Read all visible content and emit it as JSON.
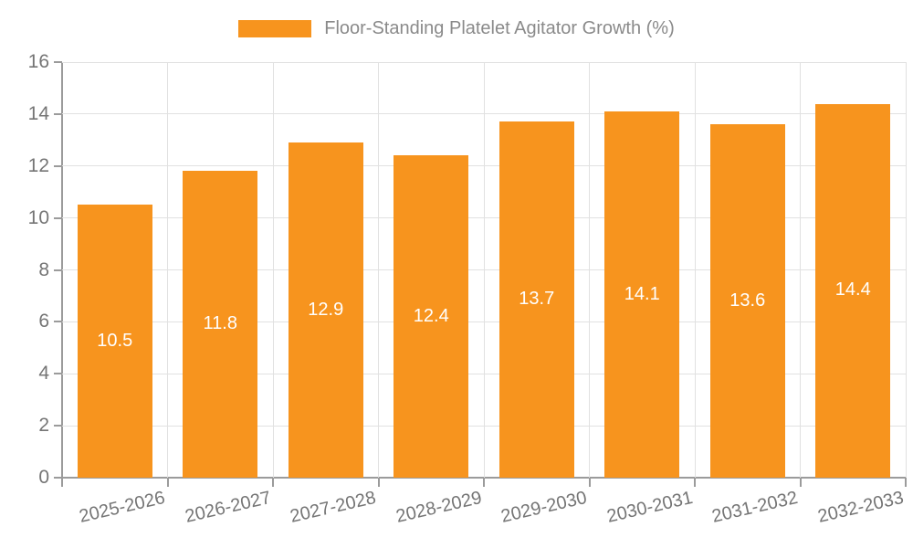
{
  "chart_data": {
    "type": "bar",
    "title": "",
    "legend": [
      "Floor-Standing Platelet Agitator Growth (%)"
    ],
    "legend_position": "top-center",
    "categories": [
      "2025-2026",
      "2026-2027",
      "2027-2028",
      "2028-2029",
      "2029-2030",
      "2030-2031",
      "2031-2032",
      "2032-2033"
    ],
    "series": [
      {
        "name": "Floor-Standing Platelet Agitator Growth (%)",
        "values": [
          10.5,
          11.8,
          12.9,
          12.4,
          13.7,
          14.1,
          13.6,
          14.4
        ]
      }
    ],
    "value_labels": [
      "10.5",
      "11.8",
      "12.9",
      "12.4",
      "13.7",
      "14.1",
      "13.6",
      "14.4"
    ],
    "xlabel": "",
    "ylabel": "",
    "ylim": [
      0,
      16
    ],
    "yticks": [
      0,
      2,
      4,
      6,
      8,
      10,
      12,
      14,
      16
    ],
    "grid": "horizontal and vertical light-gray lines",
    "x_label_rotation_deg": -13
  },
  "colors": {
    "bar": "#f7941e",
    "grid": "#e1e1e1",
    "axis": "#9b9b9b",
    "tick_label": "#757575",
    "legend_text": "#8a8a8a",
    "value_label": "#ffffff",
    "background": "#ffffff"
  }
}
